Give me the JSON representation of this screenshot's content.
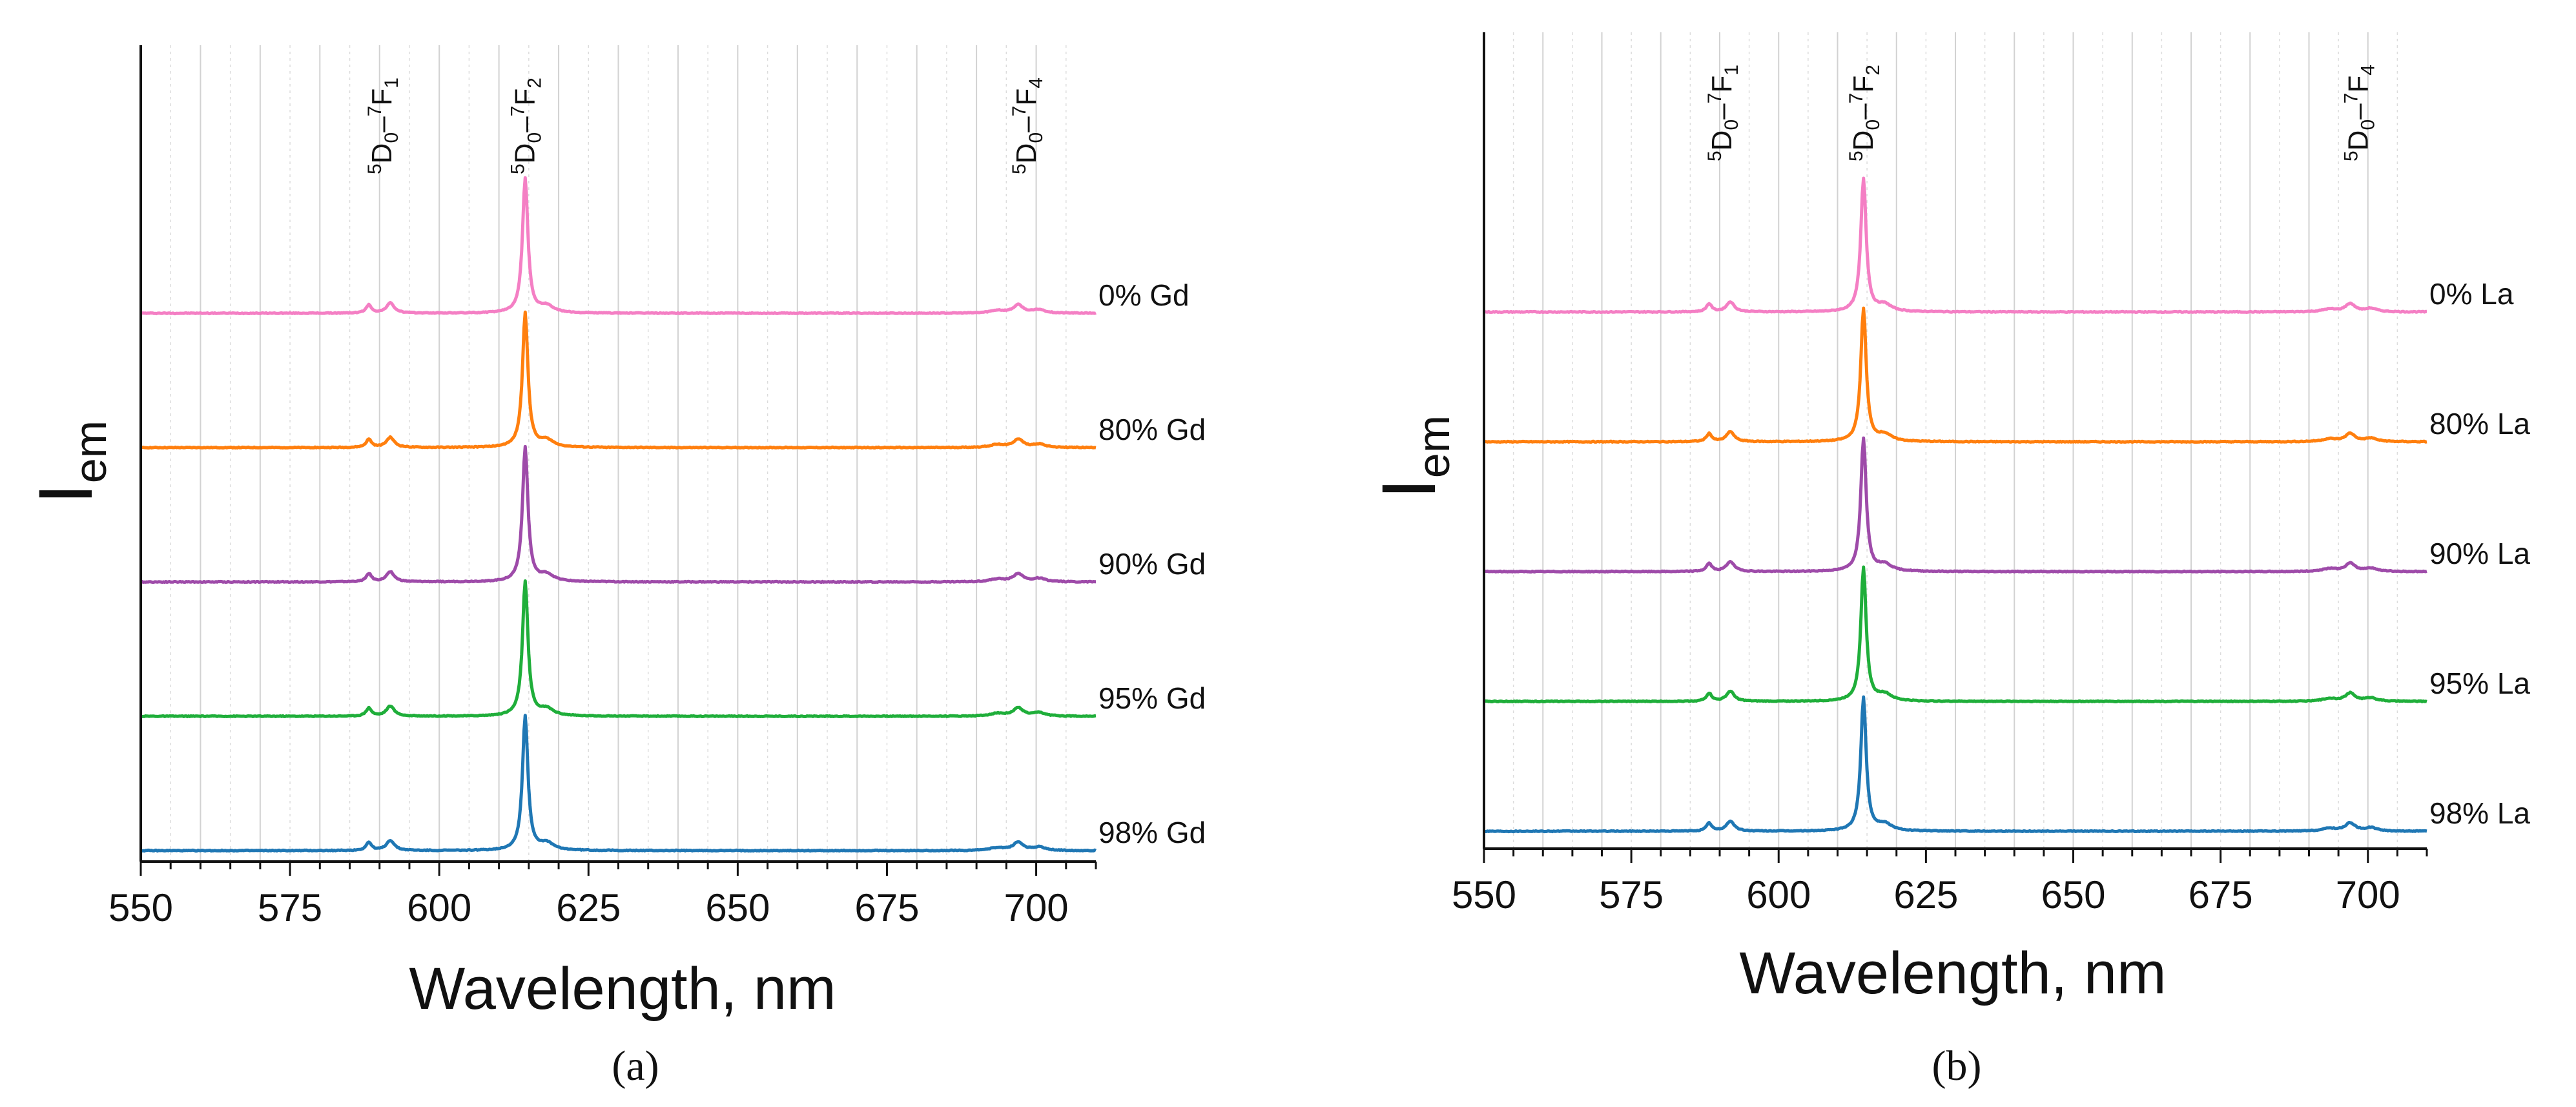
{
  "chart_data": [
    {
      "type": "line",
      "panel_caption": "(a)",
      "xlabel": "Wavelength, nm",
      "ylabel": "I",
      "ylabel_sub": "em",
      "xlim": [
        550,
        710
      ],
      "xticks": [
        550,
        575,
        600,
        625,
        650,
        675,
        700
      ],
      "yticks": [],
      "grid": "vertical",
      "annotations": [
        {
          "sup": "5",
          "base": "D",
          "sub": "0",
          "mid": "–",
          "sup2": "7",
          "base2": "F",
          "sub2": "1",
          "x": 590
        },
        {
          "sup": "5",
          "base": "D",
          "sub": "0",
          "mid": "–",
          "sup2": "7",
          "base2": "F",
          "sub2": "2",
          "x": 614
        },
        {
          "sup": "5",
          "base": "D",
          "sub": "0",
          "mid": "–",
          "sup2": "7",
          "base2": "F",
          "sub2": "4",
          "x": 698
        }
      ],
      "series": [
        {
          "name": "0% Gd",
          "color": "#f47fc4",
          "baseline": 4
        },
        {
          "name": "80% Gd",
          "color": "#ff7f0e",
          "baseline": 3
        },
        {
          "name": "90% Gd",
          "color": "#9e4ba9",
          "baseline": 2
        },
        {
          "name": "95% Gd",
          "color": "#1fae3a",
          "baseline": 1
        },
        {
          "name": "98% Gd",
          "color": "#1f77b4",
          "baseline": 0
        }
      ],
      "peaks": [
        {
          "x": 588.2,
          "h": 0.06,
          "w": 0.55
        },
        {
          "x": 591.8,
          "h": 0.075,
          "w": 0.8
        },
        {
          "x": 614.4,
          "h": 1.0,
          "w": 0.55
        },
        {
          "x": 618.0,
          "h": 0.05,
          "w": 1.4
        },
        {
          "x": 693.5,
          "h": 0.02,
          "w": 1.5
        },
        {
          "x": 697.0,
          "h": 0.06,
          "w": 1.0
        },
        {
          "x": 700.5,
          "h": 0.025,
          "w": 1.2
        }
      ]
    },
    {
      "type": "line",
      "panel_caption": "(b)",
      "xlabel": "Wavelength, nm",
      "ylabel": "I",
      "ylabel_sub": "em",
      "xlim": [
        550,
        710
      ],
      "xticks": [
        550,
        575,
        600,
        625,
        650,
        675,
        700
      ],
      "yticks": [],
      "grid": "vertical",
      "annotations": [
        {
          "sup": "5",
          "base": "D",
          "sub": "0",
          "mid": "–",
          "sup2": "7",
          "base2": "F",
          "sub2": "1",
          "x": 590
        },
        {
          "sup": "5",
          "base": "D",
          "sub": "0",
          "mid": "–",
          "sup2": "7",
          "base2": "F",
          "sub2": "2",
          "x": 614
        },
        {
          "sup": "5",
          "base": "D",
          "sub": "0",
          "mid": "–",
          "sup2": "7",
          "base2": "F",
          "sub2": "4",
          "x": 698
        }
      ],
      "series": [
        {
          "name": "0% La",
          "color": "#f47fc4",
          "baseline": 4
        },
        {
          "name": "80% La",
          "color": "#ff7f0e",
          "baseline": 3
        },
        {
          "name": "90% La",
          "color": "#9e4ba9",
          "baseline": 2
        },
        {
          "name": "95% La",
          "color": "#1fae3a",
          "baseline": 1
        },
        {
          "name": "98% La",
          "color": "#1f77b4",
          "baseline": 0
        }
      ],
      "peaks": [
        {
          "x": 588.2,
          "h": 0.06,
          "w": 0.55
        },
        {
          "x": 591.8,
          "h": 0.075,
          "w": 0.8
        },
        {
          "x": 614.4,
          "h": 1.0,
          "w": 0.55
        },
        {
          "x": 618.0,
          "h": 0.05,
          "w": 1.4
        },
        {
          "x": 693.5,
          "h": 0.02,
          "w": 1.5
        },
        {
          "x": 697.0,
          "h": 0.06,
          "w": 1.0
        },
        {
          "x": 700.5,
          "h": 0.025,
          "w": 1.2
        }
      ]
    }
  ]
}
